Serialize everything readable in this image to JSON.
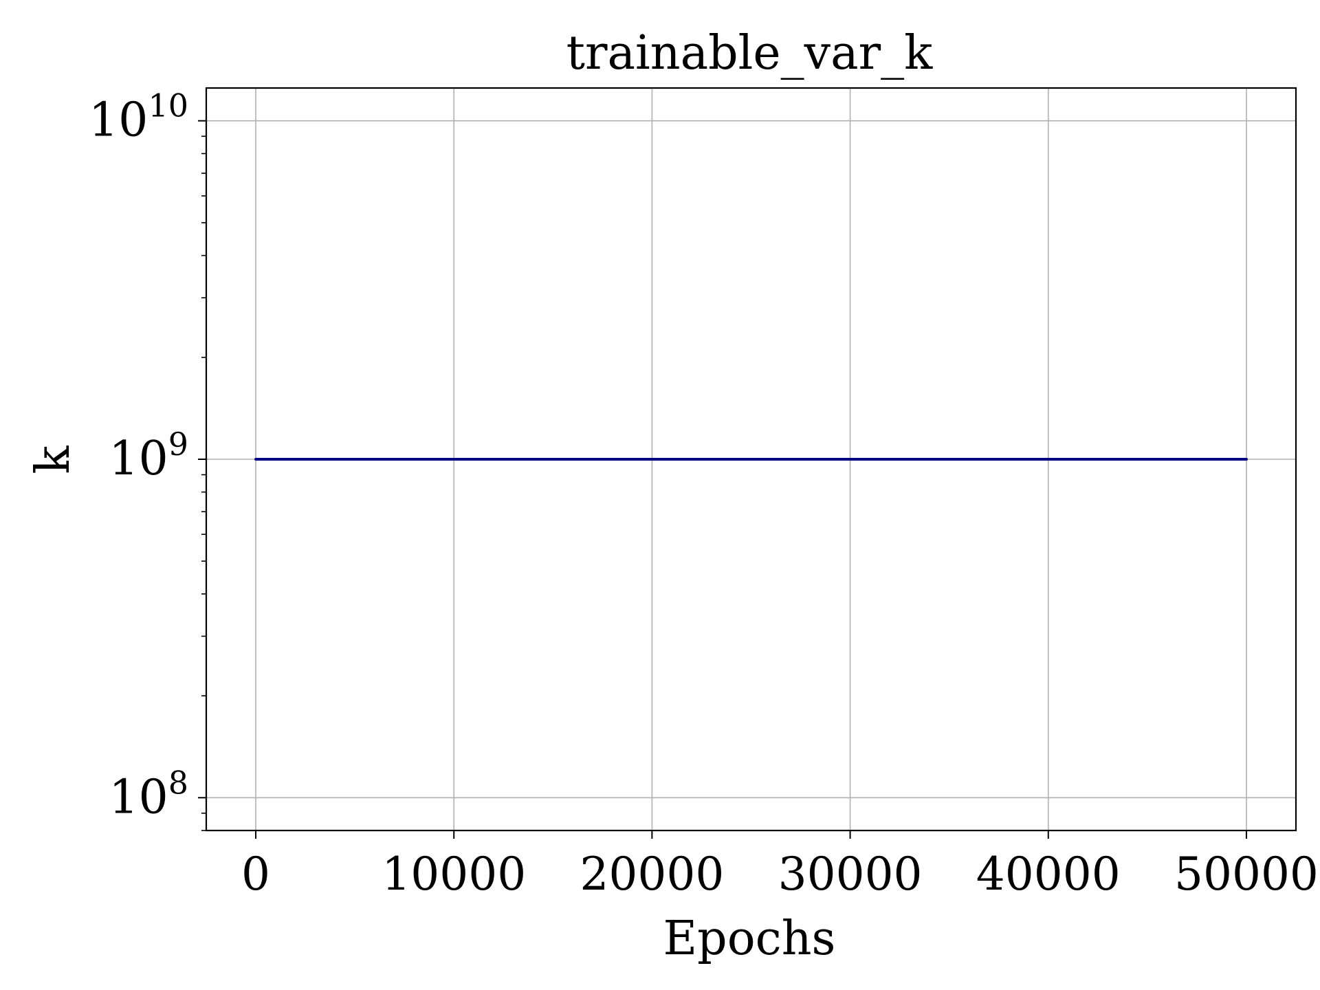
{
  "chart_data": {
    "type": "line",
    "title": "trainable_var_k",
    "xlabel": "Epochs",
    "ylabel": "k",
    "xlim": [
      -2500,
      52500
    ],
    "ylim": [
      80000000,
      12500000000
    ],
    "yscale": "log",
    "grid": true,
    "x_ticks": [
      {
        "value": 0,
        "label": "0"
      },
      {
        "value": 10000,
        "label": "10000"
      },
      {
        "value": 20000,
        "label": "20000"
      },
      {
        "value": 30000,
        "label": "30000"
      },
      {
        "value": 40000,
        "label": "40000"
      },
      {
        "value": 50000,
        "label": "50000"
      }
    ],
    "y_ticks": [
      {
        "value": 100000000,
        "base": "10",
        "exponent": "8"
      },
      {
        "value": 1000000000,
        "base": "10",
        "exponent": "9"
      },
      {
        "value": 10000000000,
        "base": "10",
        "exponent": "10"
      }
    ],
    "series": [
      {
        "color": "#000080",
        "x": [
          0,
          10000,
          20000,
          30000,
          40000,
          50000
        ],
        "y": [
          1000000000,
          1000000000,
          1000000000,
          1000000000,
          1000000000,
          1000000000
        ]
      }
    ]
  }
}
